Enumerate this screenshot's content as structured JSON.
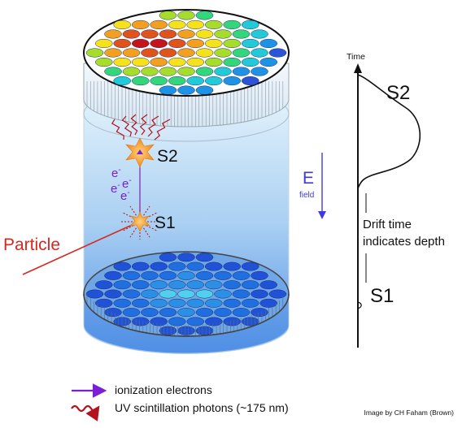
{
  "detector": {
    "s2_label": "S2",
    "s1_label": "S1",
    "particle_label": "Particle",
    "electron_symbol": "e",
    "electron_charge": "-",
    "efield_letter": "E",
    "efield_subscript": "field"
  },
  "pulse_plot": {
    "axis_label": "Time",
    "s2_label": "S2",
    "s1_label": "S1",
    "drift_caption_line1": "Drift time",
    "drift_caption_line2": "indicates depth"
  },
  "legend": [
    {
      "label": "ionization electrons",
      "color": "#7a1fd6",
      "icon": "straight-arrow-icon"
    },
    {
      "label": "UV scintillation photons (~175 nm)",
      "color": "#b3121e",
      "icon": "wavy-arrow-icon"
    }
  ],
  "credit": "Image by CH Faham (Brown)",
  "colors": {
    "particle": "#d6281f",
    "electron": "#7a1fd6",
    "photon": "#b3121e",
    "efield": "#3b3be0",
    "interaction": "#f39c2b"
  }
}
